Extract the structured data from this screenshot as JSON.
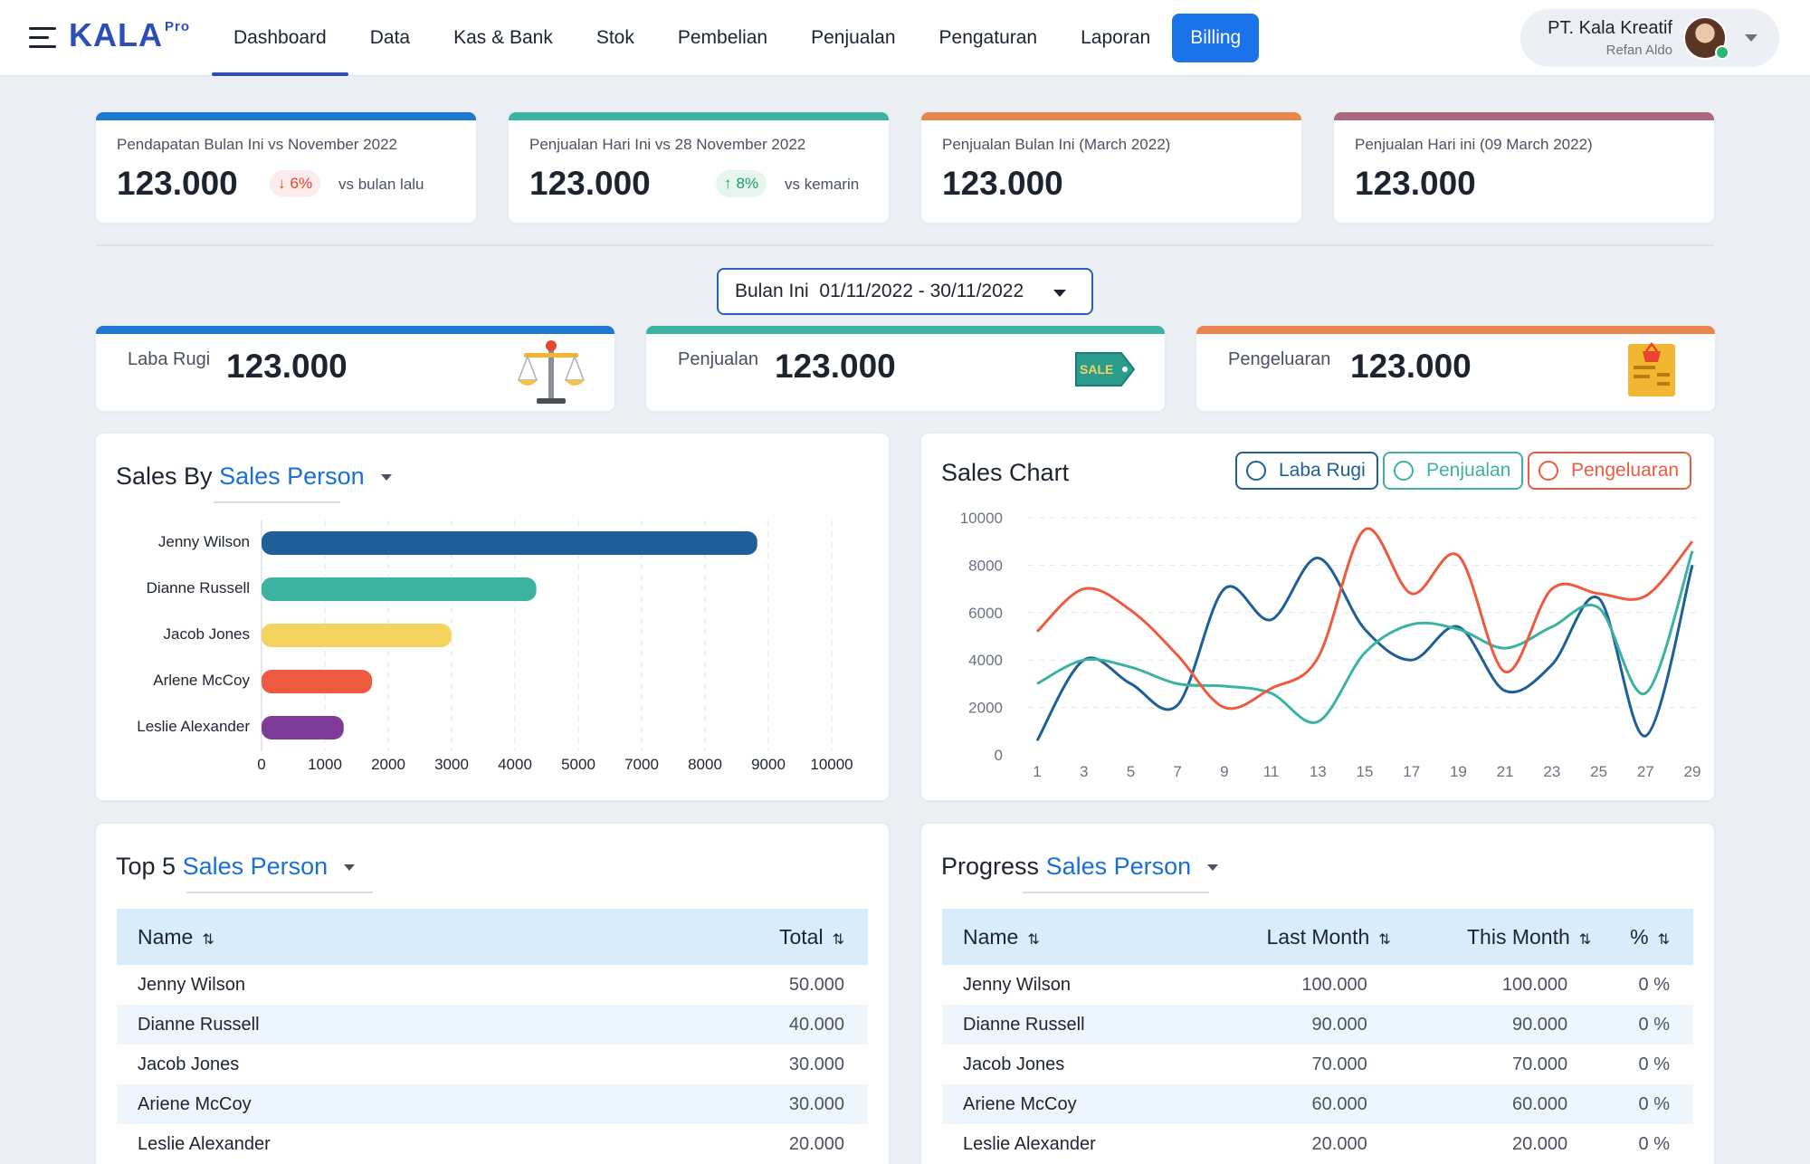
{
  "app": {
    "logo": "KALA",
    "logo_sup": "Pro"
  },
  "nav": {
    "items": [
      "Dashboard",
      "Data",
      "Kas & Bank",
      "Stok",
      "Pembelian",
      "Penjualan",
      "Pengaturan",
      "Laporan"
    ],
    "billing": "Billing"
  },
  "profile": {
    "company": "PT. Kala Kreatif",
    "user": "Refan Aldo"
  },
  "kpis": [
    {
      "label": "Pendapatan Bulan Ini vs November 2022",
      "value": "123.000",
      "badge": "6%",
      "badge_dir": "down",
      "vs": "vs bulan lalu",
      "color": "#1f78d1"
    },
    {
      "label": "Penjualan Hari Ini vs 28 November 2022",
      "value": "123.000",
      "badge": "8%",
      "badge_dir": "up",
      "vs": "vs kemarin",
      "color": "#3bb3a0"
    },
    {
      "label": "Penjualan Bulan Ini (March 2022)",
      "value": "123.000",
      "color": "#e8874d"
    },
    {
      "label": "Penjualan Hari ini (09 March 2022)",
      "value": "123.000",
      "color": "#a86a7a"
    }
  ],
  "date_filter": {
    "text": "Bulan Ini  01/11/2022 - 30/11/2022"
  },
  "summary": [
    {
      "label": "Laba Rugi",
      "value": "123.000",
      "icon": "scale-icon",
      "color": "#1f78d1"
    },
    {
      "label": "Penjualan",
      "value": "123.000",
      "icon": "sale-tag-icon",
      "color": "#3bb3a0"
    },
    {
      "label": "Pengeluaran",
      "value": "123.000",
      "icon": "receipt-basket-icon",
      "color": "#e8874d"
    }
  ],
  "sales_by": {
    "title": "Sales By",
    "accent": "Sales Person"
  },
  "sales_chart": {
    "title": "Sales Chart",
    "legend": [
      "Laba Rugi",
      "Penjualan",
      "Pengeluaran"
    ]
  },
  "top5": {
    "title": "Top 5",
    "accent": "Sales Person",
    "columns": [
      "Name",
      "Total"
    ],
    "rows": [
      [
        "Jenny Wilson",
        "50.000"
      ],
      [
        "Dianne Russell",
        "40.000"
      ],
      [
        "Jacob Jones",
        "30.000"
      ],
      [
        "Ariene McCoy",
        "30.000"
      ],
      [
        "Leslie Alexander",
        "20.000"
      ]
    ]
  },
  "progress": {
    "title": "Progress",
    "accent": "Sales Person",
    "columns": [
      "Name",
      "Last Month",
      "This Month",
      "%"
    ],
    "rows": [
      [
        "Jenny Wilson",
        "100.000",
        "100.000",
        "0 %"
      ],
      [
        "Dianne Russell",
        "90.000",
        "90.000",
        "0 %"
      ],
      [
        "Jacob Jones",
        "70.000",
        "70.000",
        "0 %"
      ],
      [
        "Ariene McCoy",
        "60.000",
        "60.000",
        "0 %"
      ],
      [
        "Leslie Alexander",
        "20.000",
        "20.000",
        "0 %"
      ]
    ]
  },
  "chart_data": [
    {
      "type": "bar",
      "orientation": "horizontal",
      "categories": [
        "Jenny Wilson",
        "Dianne Russell",
        "Jacob Jones",
        "Arlene McCoy",
        "Leslie Alexander"
      ],
      "values": [
        8750,
        4850,
        3350,
        1950,
        1450
      ],
      "colors": [
        "#1f5f99",
        "#3bb3a0",
        "#f4d35e",
        "#ee5a3f",
        "#7e3b98"
      ],
      "xticks": [
        "0",
        "1000",
        "2000",
        "3000",
        "4000",
        "5000",
        "7000",
        "8000",
        "9000",
        "10000"
      ]
    },
    {
      "type": "line",
      "ylim": [
        0,
        10000
      ],
      "yticks": [
        0,
        2000,
        4000,
        6000,
        8000,
        10000
      ],
      "x": [
        1,
        3,
        5,
        7,
        9,
        11,
        13,
        15,
        17,
        19,
        21,
        23,
        25,
        27,
        29
      ],
      "series": [
        {
          "name": "Laba Rugi",
          "color": "#1f5f99",
          "values": [
            600,
            4000,
            3000,
            2100,
            7000,
            5700,
            8300,
            5300,
            4000,
            5400,
            2700,
            3800,
            6600,
            800,
            8000
          ]
        },
        {
          "name": "Penjualan",
          "color": "#3bb3a0",
          "values": [
            3000,
            4000,
            3700,
            3000,
            2900,
            2600,
            1400,
            4300,
            5500,
            5300,
            4500,
            5400,
            6200,
            2600,
            8600
          ]
        },
        {
          "name": "Pengeluaran",
          "color": "#ee5a3f",
          "values": [
            5200,
            7000,
            6100,
            4200,
            2000,
            2800,
            4100,
            9500,
            6800,
            8400,
            3500,
            7000,
            6800,
            6700,
            9000
          ]
        }
      ]
    }
  ]
}
